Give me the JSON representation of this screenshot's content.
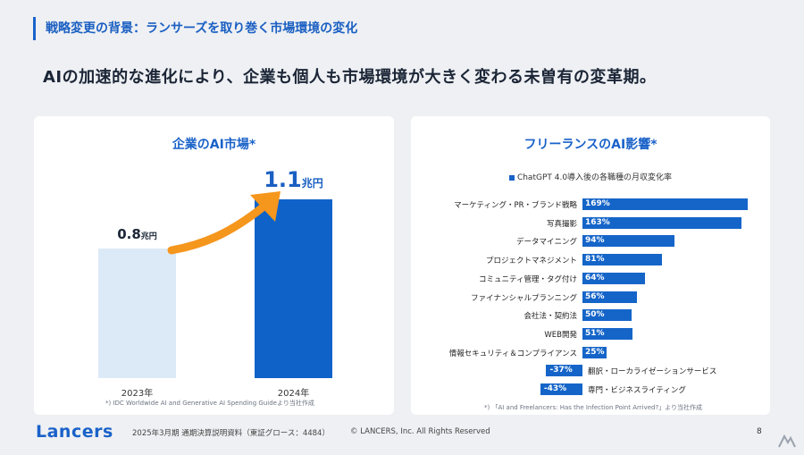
{
  "header": {
    "section_title": "戦略変更の背景：ランサーズを取り巻く市場環境の変化",
    "headline": "AIの加速的な進化により、企業も個人も市場環境が大きく変わる未曽有の変革期。"
  },
  "left_card": {
    "title": "企業のAI市場*",
    "note": "*) IDC Worldwide AI and Generative AI Spending Guideより当社作成"
  },
  "right_card": {
    "title": "フリーランスのAI影響*",
    "note": "*) 「AI and Freelancers: Has the Infection Point Arrived?」より当社作成"
  },
  "chart_data": [
    {
      "type": "bar",
      "title": "企業のAI市場*",
      "categories": [
        "2023年",
        "2024年"
      ],
      "values": [
        0.8,
        1.1
      ],
      "value_labels": [
        "0.8",
        "1.1"
      ],
      "unit": "兆円",
      "colors": [
        "#dceaf8",
        "#0f63c8"
      ],
      "annotation": "arrow-up-right"
    },
    {
      "type": "bar",
      "orientation": "horizontal",
      "title": "フリーランスのAI影響*",
      "legend": "ChatGPT 4.0導入後の各職種の月収変化率",
      "categories": [
        "マーケティング・PR・ブランド戦略",
        "写真撮影",
        "データマイニング",
        "プロジェクトマネジメント",
        "コミュニティ管理・タグ付け",
        "ファイナンシャルプランニング",
        "会社法・契約法",
        "WEB開発",
        "情報セキュリティ＆コンプライアンス",
        "翻訳・ローカライゼーションサービス",
        "専門・ビジネスライティング"
      ],
      "values": [
        169,
        163,
        94,
        81,
        64,
        56,
        50,
        51,
        25,
        -37,
        -43
      ],
      "value_labels": [
        "169%",
        "163%",
        "94%",
        "81%",
        "64%",
        "56%",
        "50%",
        "51%",
        "25%",
        "-37%",
        "-43%"
      ],
      "color": "#1565c9"
    }
  ],
  "footer": {
    "logo": "Lancers",
    "doc_title": "2025年3月期 通期決算説明資料（東証グロース：4484）",
    "copyright": "© LANCERS, Inc. All Rights Reserved",
    "page": "8"
  }
}
